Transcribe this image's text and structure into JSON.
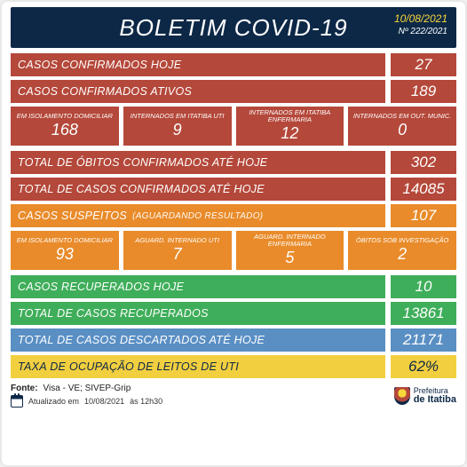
{
  "colors": {
    "header_bg": "#0d2847",
    "accent_yellow": "#f7d638",
    "red": "#b4483a",
    "orange": "#e98b2a",
    "green": "#3fae5a",
    "blue": "#5a8fc4",
    "yellow": "#f2cf3f",
    "text_light": "#ffffff",
    "text_dark": "#0d2847"
  },
  "header": {
    "title": "BOLETIM COVID-19",
    "date": "10/08/2021",
    "number": "Nº 222/2021"
  },
  "rows_top": [
    {
      "label": "CASOS CONFIRMADOS HOJE",
      "value": "27",
      "color": "red"
    },
    {
      "label": "CASOS CONFIRMADOS ATIVOS",
      "value": "189",
      "color": "red"
    }
  ],
  "mini_red": [
    {
      "label": "EM ISOLAMENTO DOMICILIAR",
      "value": "168"
    },
    {
      "label": "INTERNADOS EM ITATIBA UTI",
      "value": "9"
    },
    {
      "label": "INTERNADOS EM ITATIBA ENFERMARIA",
      "value": "12"
    },
    {
      "label": "INTERNADOS EM OUT. MUNIC.",
      "value": "0"
    }
  ],
  "rows_mid_red": [
    {
      "label": "TOTAL DE ÓBITOS CONFIRMADOS ATÉ HOJE",
      "value": "302",
      "color": "red"
    },
    {
      "label": "TOTAL DE CASOS CONFIRMADOS ATÉ HOJE",
      "value": "14085",
      "color": "red"
    }
  ],
  "row_orange": {
    "label": "CASOS SUSPEITOS",
    "sub": "(AGUARDANDO RESULTADO)",
    "value": "107",
    "color": "orange"
  },
  "mini_orange": [
    {
      "label": "EM ISOLAMENTO DOMICILIAR",
      "value": "93"
    },
    {
      "label": "AGUARD. INTERNADO UTI",
      "value": "7"
    },
    {
      "label": "AGUARD. INTERNADO ENFERMARIA",
      "value": "5"
    },
    {
      "label": "ÓBITOS SOB INVESTIGAÇÃO",
      "value": "2"
    }
  ],
  "rows_bottom": [
    {
      "label": "CASOS RECUPERADOS HOJE",
      "value": "10",
      "color": "green"
    },
    {
      "label": "TOTAL DE CASOS RECUPERADOS",
      "value": "13861",
      "color": "green"
    },
    {
      "label": "TOTAL DE CASOS DESCARTADOS ATÉ HOJE",
      "value": "21171",
      "color": "blue"
    },
    {
      "label": "TAXA DE OCUPAÇÃO DE LEITOS DE UTI",
      "value": "62%",
      "color": "yellow",
      "dark_text": true
    }
  ],
  "footer": {
    "source_prefix": "Fonte:",
    "source": "Visa - VE; SIVEP-Grip",
    "updated_prefix": "Atualizado em",
    "updated_date": "10/08/2021",
    "updated_time": "às 12h30",
    "logo_line1": "Prefeitura",
    "logo_line2": "de Itatiba"
  }
}
